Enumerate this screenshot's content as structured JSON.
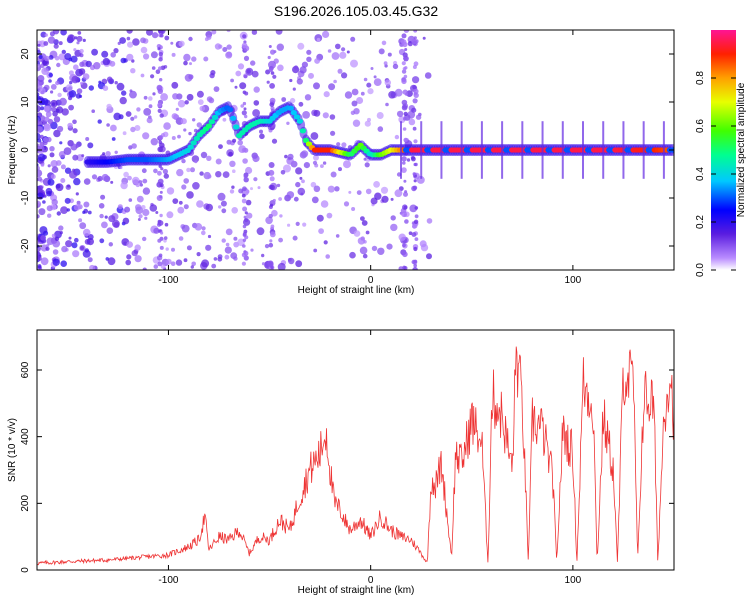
{
  "title": "S196.2026.105.03.45.G32",
  "chart_data": [
    {
      "type": "heatmap",
      "xlabel": "Height of straight line (km)",
      "ylabel": "Frequency (Hz)",
      "xlim": [
        -165,
        150
      ],
      "ylim": [
        -25,
        25
      ],
      "xticks": [
        -100,
        0,
        100
      ],
      "yticks": [
        20,
        10,
        0,
        -10,
        -20
      ],
      "colorbar": {
        "label": "Normalized spectral amplitude",
        "range": [
          0,
          1
        ],
        "ticks": [
          "0.0",
          "0.2",
          "0.4",
          "0.6",
          "0.8"
        ],
        "tick_values": [
          0,
          0.2,
          0.4,
          0.6,
          0.8
        ]
      },
      "ridge": {
        "x": [
          -140,
          -130,
          -120,
          -110,
          -100,
          -90,
          -85,
          -80,
          -75,
          -70,
          -65,
          -60,
          -55,
          -50,
          -45,
          -40,
          -35,
          -32,
          -28,
          -20,
          -10,
          -5,
          0,
          5,
          10,
          20,
          40,
          60,
          80,
          100,
          120,
          140,
          150
        ],
        "frequency": [
          -2.5,
          -2.5,
          -2,
          -2,
          -2,
          0,
          3,
          5,
          8,
          9,
          3,
          5,
          6,
          6,
          8,
          9,
          6,
          2,
          0,
          0,
          -1,
          1,
          -1,
          -1,
          0,
          0,
          0,
          0,
          0,
          0,
          0,
          0,
          0
        ],
        "amplitude": [
          0.2,
          0.25,
          0.3,
          0.3,
          0.35,
          0.4,
          0.45,
          0.5,
          0.35,
          0.3,
          0.45,
          0.45,
          0.45,
          0.4,
          0.35,
          0.35,
          0.4,
          0.5,
          0.9,
          0.9,
          0.5,
          0.6,
          0.4,
          0.6,
          0.7,
          0.95,
          0.95,
          0.95,
          0.95,
          0.95,
          0.95,
          0.9,
          0.85
        ]
      }
    },
    {
      "type": "line",
      "xlabel": "Height of straight line (km)",
      "ylabel": "SNR (10 * v/v)",
      "xlim": [
        -165,
        150
      ],
      "ylim": [
        0,
        720
      ],
      "xticks": [
        -100,
        0,
        100
      ],
      "yticks": [
        0,
        200,
        400,
        600
      ],
      "color": "#ee3333",
      "series": [
        {
          "x": [
            -165,
            -150,
            -130,
            -110,
            -100,
            -90,
            -85,
            -82,
            -80,
            -75,
            -70,
            -65,
            -60,
            -55,
            -50,
            -45,
            -40,
            -35,
            -30,
            -25,
            -22,
            -20,
            -18,
            -15,
            -12,
            -10,
            -5,
            0,
            5,
            10,
            15,
            20,
            25,
            28,
            30,
            32,
            35,
            40,
            42,
            45,
            50,
            55,
            58,
            60,
            62,
            65,
            70,
            72,
            75,
            78,
            80,
            85,
            90,
            92,
            95,
            100,
            102,
            105,
            110,
            112,
            115,
            120,
            122,
            125,
            130,
            132,
            135,
            140,
            142,
            145,
            148,
            150
          ],
          "y": [
            20,
            25,
            30,
            40,
            45,
            70,
            90,
            160,
            60,
            100,
            90,
            120,
            50,
            100,
            90,
            150,
            120,
            220,
            300,
            350,
            420,
            300,
            200,
            180,
            140,
            120,
            150,
            100,
            160,
            120,
            100,
            90,
            50,
            20,
            280,
            250,
            320,
            40,
            350,
            320,
            450,
            380,
            20,
            520,
            500,
            460,
            300,
            650,
            500,
            20,
            450,
            420,
            280,
            20,
            420,
            350,
            20,
            560,
            500,
            20,
            460,
            300,
            20,
            600,
            560,
            20,
            520,
            500,
            20,
            470,
            600,
            450
          ]
        }
      ]
    }
  ]
}
